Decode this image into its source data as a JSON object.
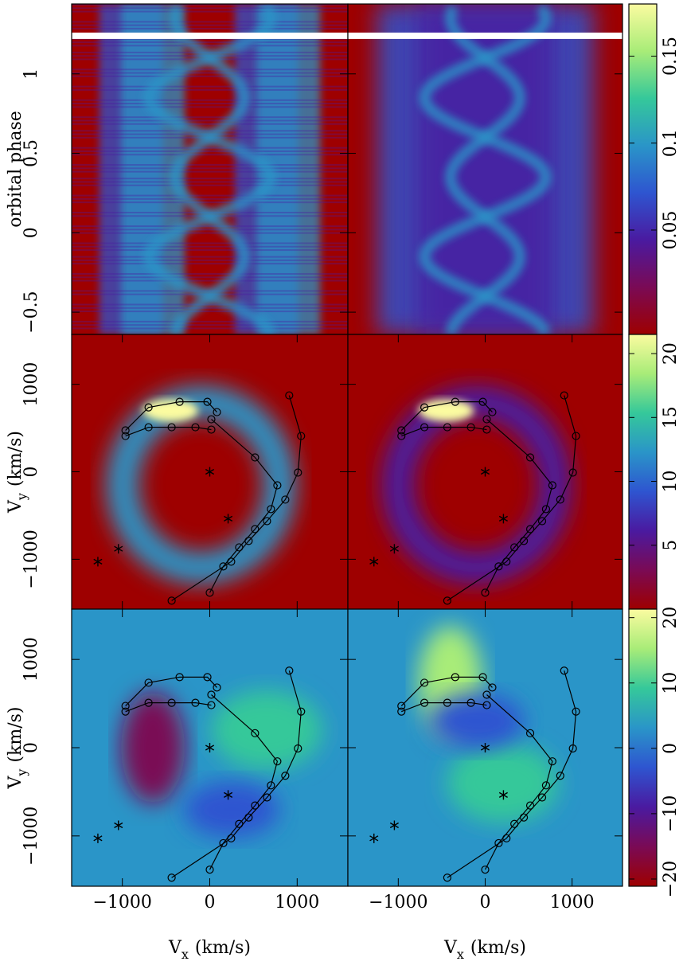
{
  "chart_data": [
    {
      "type": "trailed",
      "ylabel": "orbital phase",
      "xlim": [
        -1580,
        1580
      ],
      "ylim": [
        -0.64,
        1.44
      ],
      "yticks": [
        {
          "value": -0.5,
          "label": "−0.5"
        },
        0,
        0.5,
        1
      ],
      "clim": [
        -0.01,
        0.18
      ],
      "cticks": [
        0.05,
        0.1,
        0.15
      ]
    },
    {
      "type": "doppler",
      "ylabel": {
        "symbol": "V",
        "subscript": "y",
        "unit": "(km/s)"
      },
      "xlim": [
        -1580,
        1580
      ],
      "ylim": [
        -1570,
        1570
      ],
      "yticks": [
        {
          "value": -1000,
          "label": "−1000"
        },
        0,
        1000
      ],
      "clim": [
        0,
        21.5
      ],
      "cticks": [
        5,
        10,
        15,
        20
      ]
    },
    {
      "type": "doppler",
      "ylabel": {
        "symbol": "V",
        "subscript": "y",
        "unit": "(km/s)"
      },
      "xlabel": {
        "symbol": "V",
        "subscript": "x",
        "unit": "(km/s)"
      },
      "xlim": [
        -1580,
        1580
      ],
      "ylim": [
        -1570,
        1570
      ],
      "xticks": [
        {
          "value": -1000,
          "label": "−1000"
        },
        0,
        1000
      ],
      "yticks": [
        {
          "value": -1000,
          "label": "−1000"
        },
        0,
        1000
      ],
      "clim": [
        -21.1,
        21.3
      ],
      "cticks": [
        {
          "value": -20,
          "label": "−20"
        },
        {
          "value": -10,
          "label": "−10"
        },
        0,
        10,
        20
      ]
    }
  ],
  "colormap": [
    "#9e0000",
    "#7a0a55",
    "#4a1aa0",
    "#2e55d0",
    "#2a95c8",
    "#35c89a",
    "#a8ec78",
    "#fbfba0"
  ],
  "overlay": {
    "series": [
      {
        "x": [
          -964,
          -700,
          -345,
          -27,
          82
        ],
        "values": [
          473,
          736,
          800,
          800,
          682
        ]
      },
      {
        "x": [
          -964,
          -700,
          -436,
          -164,
          18
        ],
        "values": [
          409,
          509,
          509,
          509,
          482
        ]
      },
      {
        "x": [
          18,
          518,
          773,
          700,
          518,
          336,
          155,
          0
        ],
        "values": [
          600,
          164,
          -155,
          -427,
          -655,
          -864,
          -1082,
          -1382
        ]
      },
      {
        "x": [
          909,
          1045,
          1009,
          864,
          655,
          445,
          245,
          -436
        ],
        "values": [
          873,
          409,
          -9,
          -318,
          -564,
          -791,
          -1027,
          -1473
        ]
      }
    ],
    "stars": {
      "x": [
        0,
        -1280,
        -1045,
        210
      ],
      "values": [
        0,
        -1027,
        -880,
        -536
      ]
    }
  }
}
